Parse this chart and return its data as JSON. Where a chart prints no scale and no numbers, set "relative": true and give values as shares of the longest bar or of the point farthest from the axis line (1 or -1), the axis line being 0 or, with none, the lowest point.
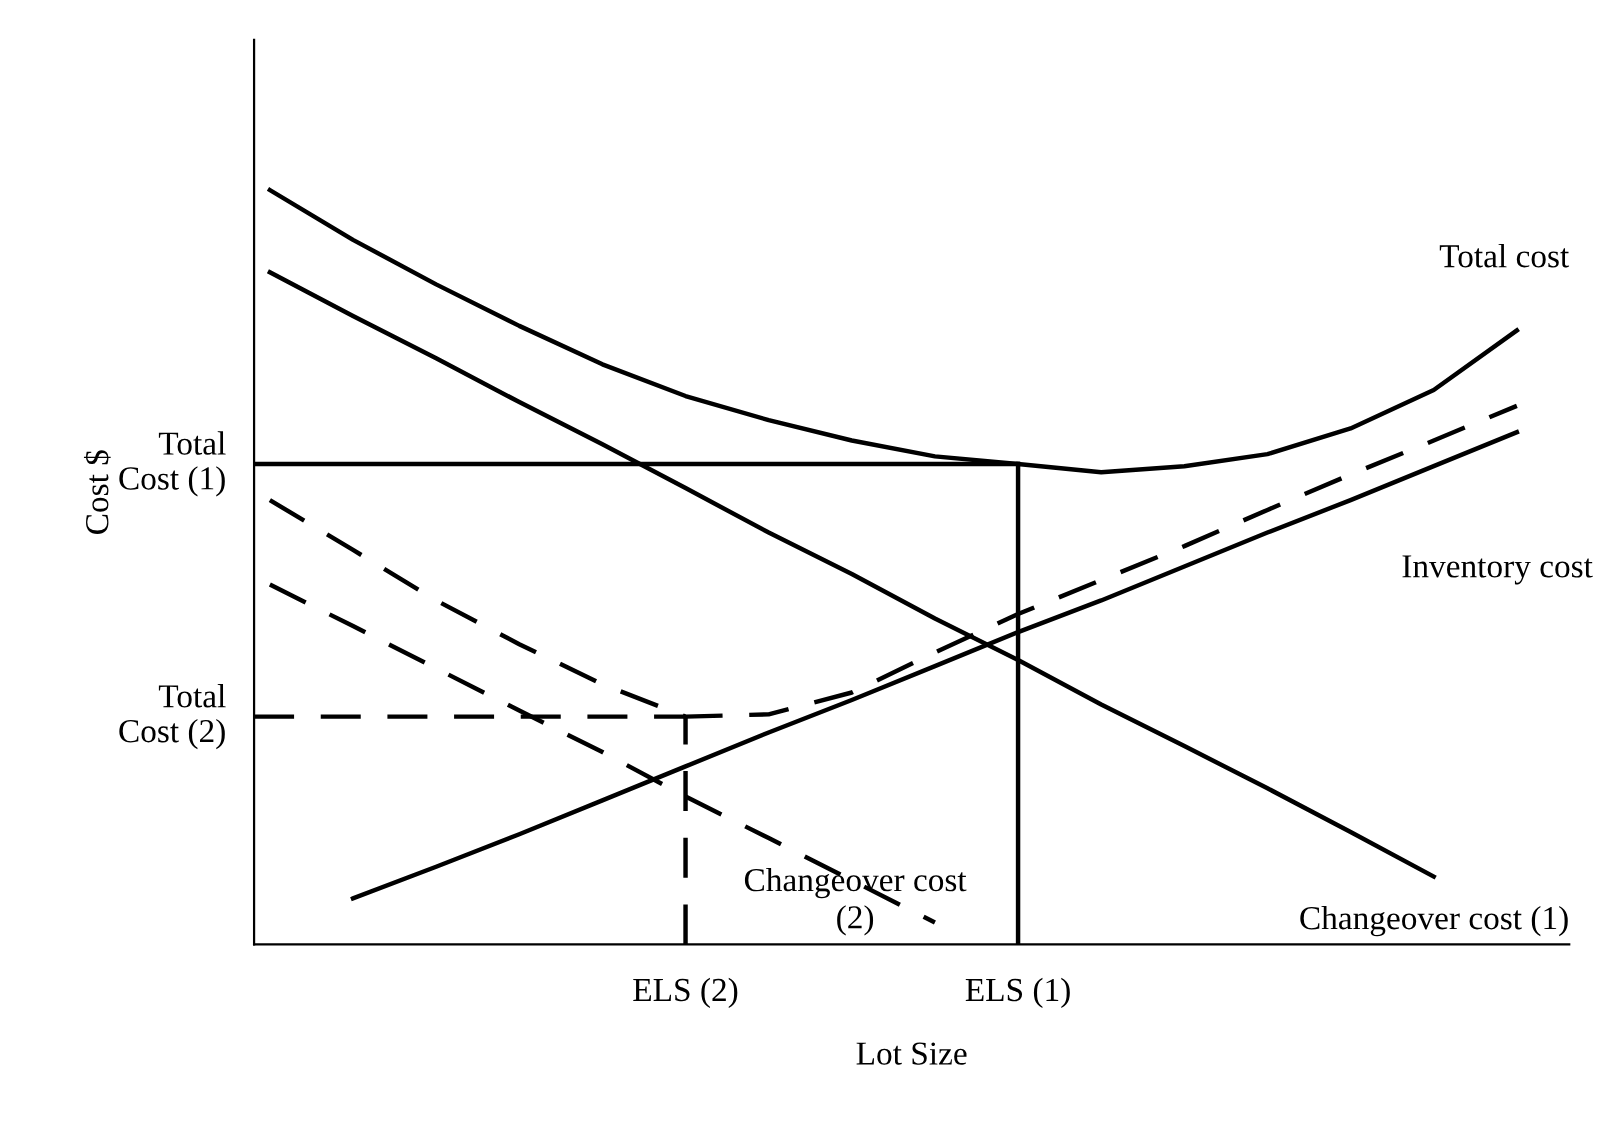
{
  "chart_data": {
    "type": "line",
    "relative": true,
    "xlabel": "Lot Size",
    "ylabel": "Cost $",
    "marker": "none",
    "grid": false,
    "legend": false,
    "categories": [
      null,
      null,
      null,
      null,
      null,
      "ELS (2)",
      null,
      null,
      null,
      "ELS (1)",
      null,
      null,
      null,
      null,
      null,
      null
    ],
    "series": [
      {
        "name": "Total cost",
        "color": "#000000",
        "line_style": "solid",
        "values": [
          1.0,
          0.934,
          0.875,
          0.82,
          0.769,
          0.727,
          0.695,
          0.668,
          0.647,
          0.637,
          0.626,
          0.634,
          0.65,
          0.684,
          0.735,
          0.814
        ]
      },
      {
        "name": "Inventory cost",
        "color": "#000000",
        "line_style": "solid",
        "values": [
          null,
          0.061,
          0.103,
          0.146,
          0.191,
          0.236,
          0.281,
          0.324,
          0.369,
          0.414,
          0.456,
          0.501,
          0.546,
          0.589,
          0.634,
          0.679
        ]
      },
      {
        "name": "Changeover cost (1)",
        "color": "#000000",
        "line_style": "solid",
        "values": [
          0.891,
          0.833,
          0.777,
          0.719,
          0.663,
          0.605,
          0.546,
          0.491,
          0.432,
          0.377,
          0.318,
          0.263,
          0.207,
          0.149,
          0.09,
          null
        ]
      },
      {
        "color": "#000000",
        "line_style": "dashed",
        "values": [
          0.589,
          0.523,
          0.456,
          0.398,
          0.345,
          0.302,
          0.305,
          0.334,
          0.387,
          0.438,
          0.483,
          0.528,
          0.576,
          0.623,
          0.668,
          0.714
        ]
      },
      {
        "name": "Changeover cost\n(2)",
        "color": "#000000",
        "line_style": "dashed",
        "values": [
          0.477,
          0.422,
          0.366,
          0.31,
          0.255,
          0.196,
          0.141,
          0.085,
          0.029,
          null,
          null,
          null,
          null,
          null,
          null,
          null
        ]
      }
    ],
    "ref_lines": [
      {
        "axis": "y",
        "value": 0.637,
        "label": "Total\nCost (1)",
        "line_style": "solid",
        "color": "#000000"
      },
      {
        "axis": "x",
        "value": "ELS (1)",
        "line_style": "solid",
        "color": "#000000"
      },
      {
        "axis": "y",
        "value": 0.302,
        "label": "Total\nCost (2)",
        "line_style": "dashed",
        "color": "#000000"
      },
      {
        "axis": "x",
        "value": "ELS (2)",
        "line_style": "dashed",
        "color": "#000000"
      }
    ]
  }
}
